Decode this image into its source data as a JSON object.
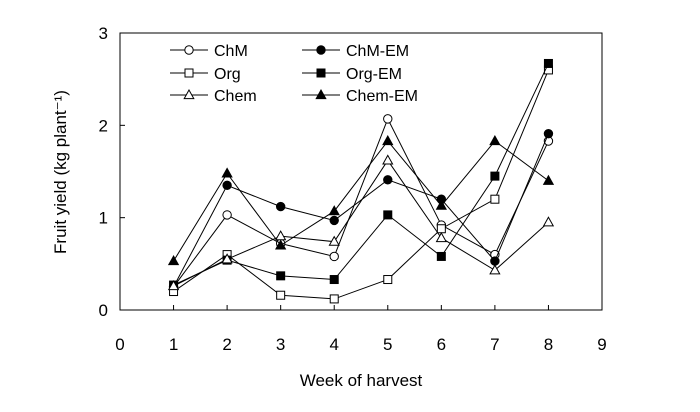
{
  "chart_data": {
    "type": "line",
    "xlabel": "Week of harvest",
    "ylabel": "Fruit yield (kg plant⁻¹)",
    "xlim": [
      0,
      9
    ],
    "ylim": [
      0,
      3
    ],
    "xticks": [
      0,
      1,
      2,
      3,
      4,
      5,
      6,
      7,
      8,
      9
    ],
    "yticks": [
      0,
      1,
      2,
      3
    ],
    "grid": false,
    "legend_position": "top-left",
    "x": [
      1,
      2,
      3,
      4,
      5,
      6,
      7,
      8
    ],
    "series": [
      {
        "name": "ChM",
        "marker": "circle-open",
        "values": [
          0.25,
          1.03,
          0.72,
          0.58,
          2.07,
          0.92,
          0.6,
          1.83
        ]
      },
      {
        "name": "ChM-EM",
        "marker": "circle-filled",
        "values": [
          0.25,
          1.35,
          1.12,
          0.97,
          1.41,
          1.2,
          0.53,
          1.91
        ]
      },
      {
        "name": "Org",
        "marker": "square-open",
        "values": [
          0.2,
          0.6,
          0.16,
          0.12,
          0.33,
          0.88,
          1.2,
          2.6
        ]
      },
      {
        "name": "Org-EM",
        "marker": "square-filled",
        "values": [
          0.27,
          0.54,
          0.37,
          0.33,
          1.03,
          0.58,
          1.45,
          2.67
        ]
      },
      {
        "name": "Chem",
        "marker": "triangle-open",
        "values": [
          0.26,
          0.55,
          0.8,
          0.74,
          1.62,
          0.78,
          0.43,
          0.95
        ]
      },
      {
        "name": "Chem-EM",
        "marker": "triangle-filled",
        "values": [
          0.53,
          1.48,
          0.7,
          1.07,
          1.83,
          1.13,
          1.83,
          1.4
        ]
      }
    ]
  }
}
